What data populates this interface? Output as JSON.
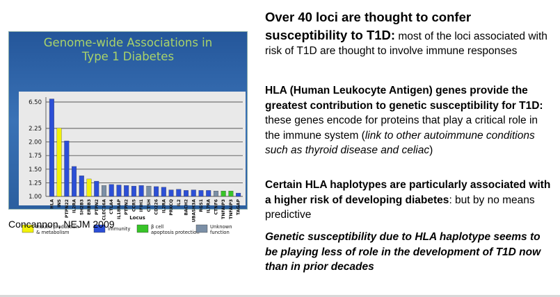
{
  "figure": {
    "title_line1": "Genome-wide Associations in",
    "title_line2": "Type 1 Diabetes",
    "caption": "Concannon, NEJM 2009"
  },
  "chart_data": {
    "type": "bar",
    "title": "Genome-wide Associations in Type 1 Diabetes",
    "xlabel": "Locus",
    "ylabel": "",
    "y_ticks": [
      "1.00",
      "1.25",
      "1.50",
      "1.75",
      "2.00",
      "2.25",
      "6.50"
    ],
    "categories": [
      "HLA",
      "INS",
      "PTPN22",
      "IL2RA",
      "SH2B3",
      "ERBB3",
      "PTPN2",
      "CLEC16A",
      "CTLA4",
      "IL18RAP",
      "PTPN2",
      "CCR5",
      "IFIH1",
      "CTSH",
      "CD226",
      "IL2RA",
      "PRKCQ",
      "IL2",
      "BACH2",
      "UBASH3A",
      "RGS1",
      "IL7RA",
      "CTNF6",
      "TNFAIP3",
      "TNFAIP3",
      "TAGAP"
    ],
    "values": [
      7.0,
      2.3,
      2.02,
      1.55,
      1.38,
      1.32,
      1.28,
      1.2,
      1.22,
      1.21,
      1.2,
      1.19,
      1.2,
      1.19,
      1.18,
      1.17,
      1.12,
      1.13,
      1.11,
      1.12,
      1.11,
      1.11,
      1.1,
      1.1,
      1.1,
      1.06
    ],
    "groups": [
      "immunity",
      "insulin",
      "immunity",
      "immunity",
      "immunity",
      "insulin",
      "immunity",
      "unknown",
      "immunity",
      "immunity",
      "immunity",
      "immunity",
      "immunity",
      "unknown",
      "immunity",
      "immunity",
      "immunity",
      "immunity",
      "immunity",
      "immunity",
      "immunity",
      "immunity",
      "unknown",
      "beta",
      "beta",
      "immunity"
    ],
    "legend": [
      {
        "key": "insulin",
        "label": "Insulin production & metabolism",
        "color": "#f2f20a"
      },
      {
        "key": "immunity",
        "label": "Immunity",
        "color": "#2c4fd6"
      },
      {
        "key": "beta",
        "label": "β cell apoptosis protection",
        "color": "#38c428"
      },
      {
        "key": "unknown",
        "label": "Unknown function",
        "color": "#7b8fa6"
      }
    ]
  },
  "text": {
    "p1_head": "Over 40 loci are thought to confer susceptibility to T1D:",
    "p1_rest": " most of the loci associated with risk of T1D are thought to involve immune responses",
    "p2_bold": "HLA (Human Leukocyte Antigen) genes provide the greatest contribution to genetic susceptibility for T1D:",
    "p2_rest": " these genes encode for proteins that play a critical role in the immune system (",
    "p2_italic": "link to other autoimmune conditions such as thyroid disease and celiac",
    "p2_close": ")",
    "p3_bold": "Certain HLA haplotypes are particularly associated with a higher risk of developing diabetes",
    "p3_rest": ": but by no means predictive",
    "p4": "Genetic susceptibility due to HLA haplotype seems to be playing less of role in the development of T1D now than in prior decades"
  }
}
